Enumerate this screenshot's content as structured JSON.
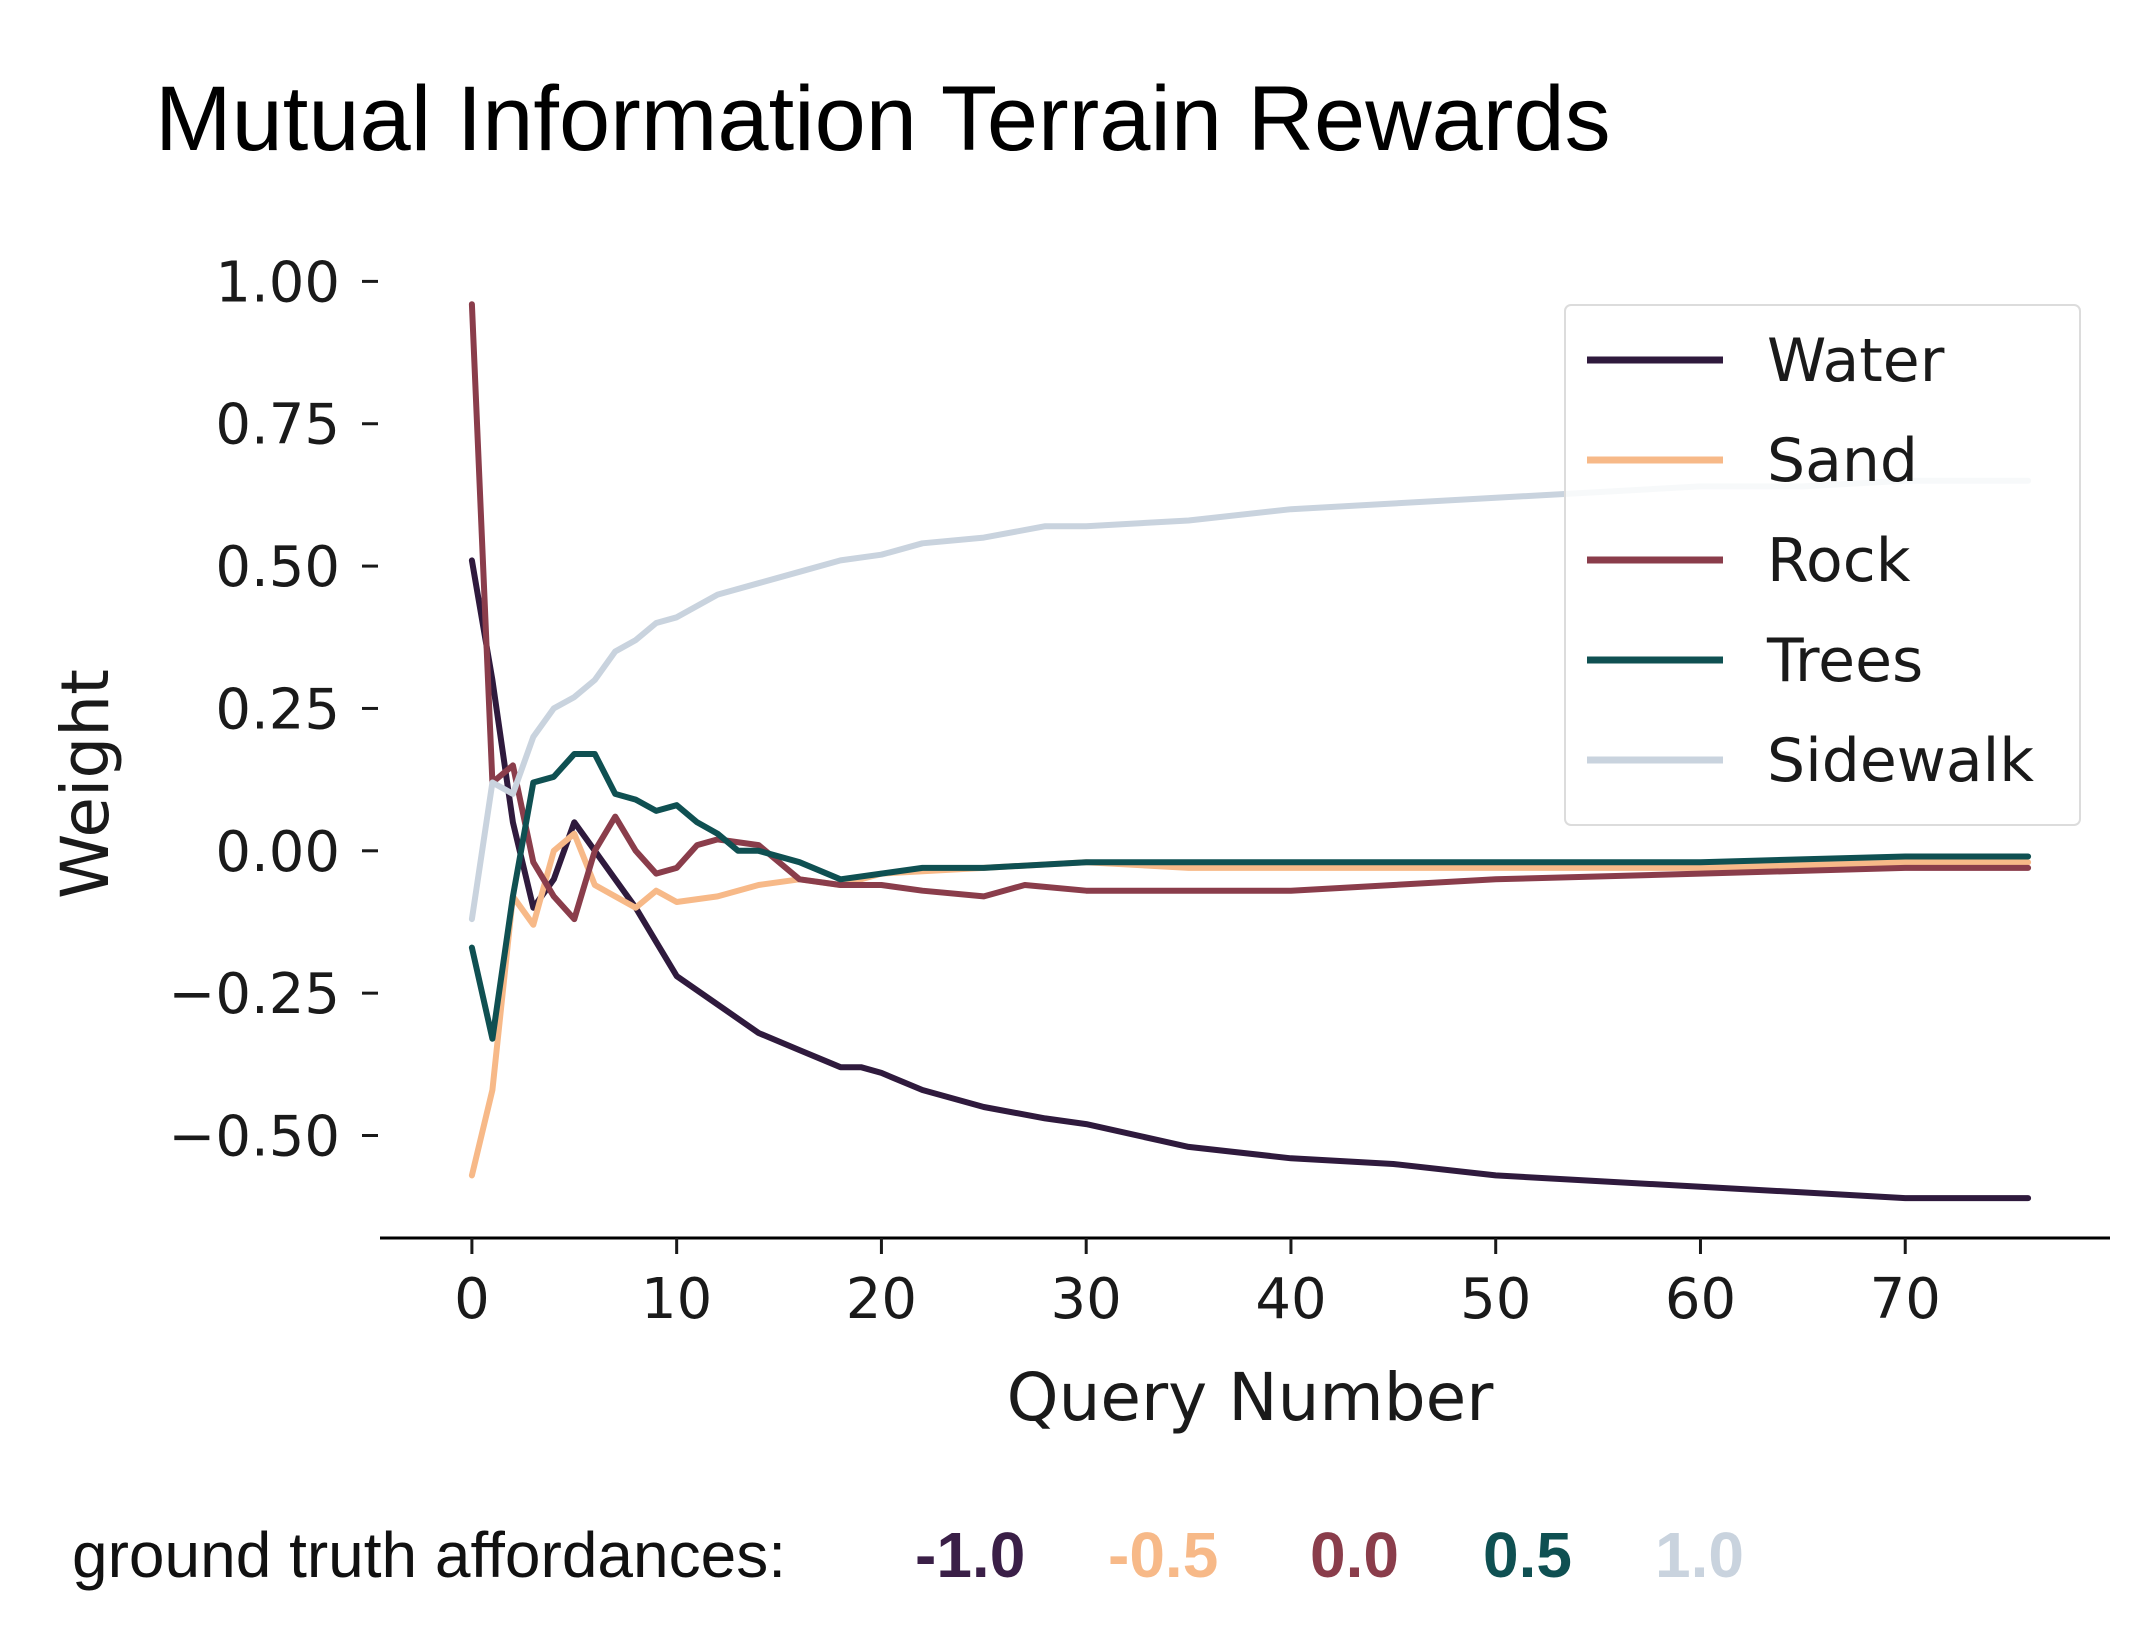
{
  "chart_data": {
    "type": "line",
    "title": "Mutual Information Terrain Rewards",
    "xlabel": "Query Number",
    "ylabel": "Weight",
    "xlim": [
      -4,
      80
    ],
    "ylim": [
      -0.68,
      1.02
    ],
    "xticks": [
      0,
      10,
      20,
      30,
      40,
      50,
      60,
      70
    ],
    "xtick_labels": [
      "0",
      "10",
      "20",
      "30",
      "40",
      "50",
      "60",
      "70"
    ],
    "yticks": [
      1.0,
      0.75,
      0.5,
      0.25,
      0.0,
      -0.25,
      -0.5
    ],
    "ytick_labels": [
      "1.00",
      "0.75",
      "0.50",
      "0.25",
      "0.00",
      "−0.25",
      "−0.50"
    ],
    "grid": false,
    "legend_position": "top-right",
    "series": [
      {
        "name": "Water",
        "color": "#2f1a3d",
        "x": [
          0,
          1,
          2,
          3,
          4,
          5,
          6,
          7,
          8,
          9,
          10,
          12,
          14,
          16,
          18,
          19,
          20,
          22,
          25,
          28,
          30,
          35,
          40,
          45,
          50,
          55,
          60,
          65,
          70,
          76
        ],
        "y": [
          0.51,
          0.3,
          0.05,
          -0.1,
          -0.05,
          0.05,
          0.0,
          -0.05,
          -0.1,
          -0.16,
          -0.22,
          -0.27,
          -0.32,
          -0.35,
          -0.38,
          -0.38,
          -0.39,
          -0.42,
          -0.45,
          -0.47,
          -0.48,
          -0.52,
          -0.54,
          -0.55,
          -0.57,
          -0.58,
          -0.59,
          -0.6,
          -0.61,
          -0.61
        ]
      },
      {
        "name": "Sand",
        "color": "#f7b988",
        "x": [
          0,
          1,
          2,
          3,
          4,
          5,
          6,
          7,
          8,
          9,
          10,
          12,
          14,
          16,
          18,
          20,
          25,
          30,
          35,
          40,
          50,
          60,
          70,
          76
        ],
        "y": [
          -0.57,
          -0.42,
          -0.08,
          -0.13,
          0.0,
          0.03,
          -0.06,
          -0.08,
          -0.1,
          -0.07,
          -0.09,
          -0.08,
          -0.06,
          -0.05,
          -0.06,
          -0.04,
          -0.03,
          -0.02,
          -0.03,
          -0.03,
          -0.03,
          -0.03,
          -0.02,
          -0.02
        ]
      },
      {
        "name": "Rock",
        "color": "#8a3d4b",
        "x": [
          0,
          1,
          2,
          3,
          4,
          5,
          6,
          7,
          8,
          9,
          10,
          11,
          12,
          14,
          16,
          18,
          20,
          22,
          25,
          27,
          30,
          35,
          40,
          45,
          50,
          60,
          70,
          76
        ],
        "y": [
          0.96,
          0.12,
          0.15,
          -0.02,
          -0.08,
          -0.12,
          0.0,
          0.06,
          0.0,
          -0.04,
          -0.03,
          0.01,
          0.02,
          0.01,
          -0.05,
          -0.06,
          -0.06,
          -0.07,
          -0.08,
          -0.06,
          -0.07,
          -0.07,
          -0.07,
          -0.06,
          -0.05,
          -0.04,
          -0.03,
          -0.03
        ]
      },
      {
        "name": "Trees",
        "color": "#0f5052",
        "x": [
          0,
          1,
          2,
          3,
          4,
          5,
          6,
          7,
          8,
          9,
          10,
          11,
          12,
          13,
          14,
          16,
          18,
          20,
          22,
          25,
          30,
          40,
          50,
          60,
          70,
          76
        ],
        "y": [
          -0.17,
          -0.33,
          -0.08,
          0.12,
          0.13,
          0.17,
          0.17,
          0.1,
          0.09,
          0.07,
          0.08,
          0.05,
          0.03,
          0.0,
          0.0,
          -0.02,
          -0.05,
          -0.04,
          -0.03,
          -0.03,
          -0.02,
          -0.02,
          -0.02,
          -0.02,
          -0.01,
          -0.01
        ]
      },
      {
        "name": "Sidewalk",
        "color": "#c9d3de",
        "x": [
          0,
          1,
          2,
          3,
          4,
          5,
          6,
          7,
          8,
          9,
          10,
          12,
          14,
          16,
          18,
          20,
          22,
          25,
          28,
          30,
          35,
          40,
          45,
          50,
          55,
          60,
          65,
          70,
          76
        ],
        "y": [
          -0.12,
          0.12,
          0.1,
          0.2,
          0.25,
          0.27,
          0.3,
          0.35,
          0.37,
          0.4,
          0.41,
          0.45,
          0.47,
          0.49,
          0.51,
          0.52,
          0.54,
          0.55,
          0.57,
          0.57,
          0.58,
          0.6,
          0.61,
          0.62,
          0.63,
          0.64,
          0.64,
          0.65,
          0.65
        ]
      }
    ]
  },
  "footer": {
    "label": "ground truth affordances:",
    "values": [
      {
        "text": "-1.0",
        "color": "#3a1f47"
      },
      {
        "text": "-0.5",
        "color": "#f7b988"
      },
      {
        "text": "0.0",
        "color": "#8a3d4b"
      },
      {
        "text": "0.5",
        "color": "#0f5052"
      },
      {
        "text": "1.0",
        "color": "#c9d3de"
      }
    ]
  }
}
